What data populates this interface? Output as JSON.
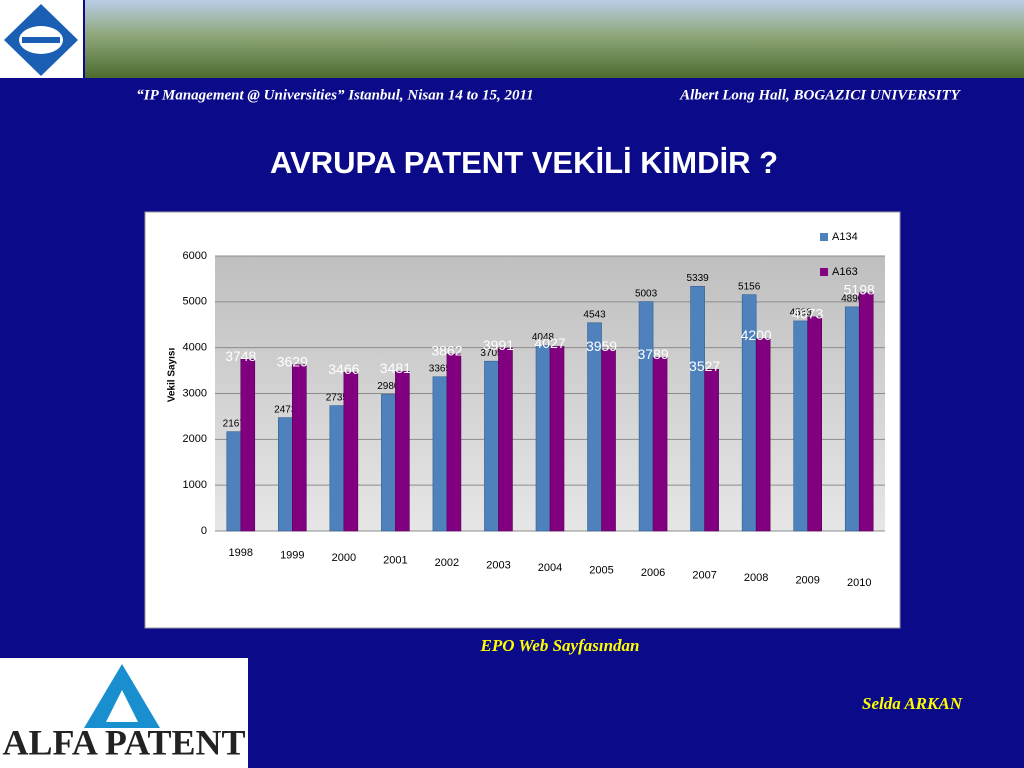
{
  "header": {
    "conference": "“IP Management @ Universities” Istanbul, Nisan 14 to 15, 2011",
    "venue": "Albert Long Hall, BOGAZICI UNIVERSITY"
  },
  "slide": {
    "title": "AVRUPA PATENT VEKİLİ KİMDİR ?",
    "source": "EPO Web Sayfasından",
    "author": "Selda ARKAN",
    "logo": "ALFA PATENT"
  },
  "chart_data": {
    "type": "bar",
    "y_label": "Vekil Sayısı",
    "categories": [
      "1998",
      "1999",
      "2000",
      "2001",
      "2002",
      "2003",
      "2004",
      "2005",
      "2006",
      "2007",
      "2008",
      "2009",
      "2010"
    ],
    "series": [
      {
        "name": "A134",
        "color": "#4f81bd",
        "values": [
          2167,
          2473,
          2735,
          2980,
          3365,
          3705,
          4048,
          4543,
          5003,
          5339,
          5156,
          4583,
          4890
        ]
      },
      {
        "name": "A163",
        "color": "#800080",
        "values": [
          3748,
          3629,
          3466,
          3481,
          3862,
          3991,
          4027,
          3959,
          3789,
          3527,
          4200,
          4673,
          5198
        ]
      }
    ],
    "ylim": [
      0,
      6000
    ],
    "yticks": [
      0,
      1000,
      2000,
      3000,
      4000,
      5000,
      6000
    ],
    "grid": true,
    "legend": "top-right"
  }
}
